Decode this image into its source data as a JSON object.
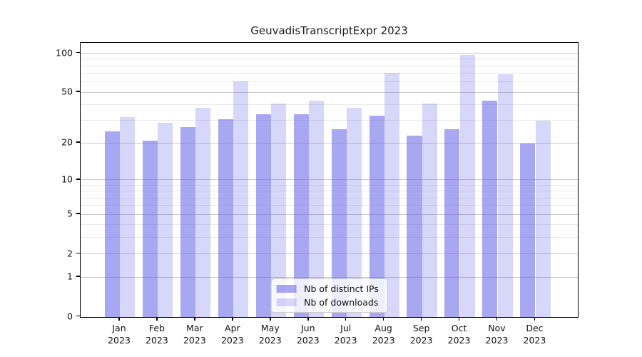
{
  "figure": {
    "background": "#ffffff",
    "border_color": "#000000"
  },
  "chart_data": {
    "type": "bar",
    "title": "GeuvadisTranscriptExpr 2023",
    "categories": [
      "Jan 2023",
      "Feb 2023",
      "Mar 2023",
      "Apr 2023",
      "May 2023",
      "Jun 2023",
      "Jul 2023",
      "Aug 2023",
      "Sep 2023",
      "Oct 2023",
      "Nov 2023",
      "Dec 2023"
    ],
    "series": [
      {
        "name": "Nb of distinct IPs",
        "color": "rgba(96,96,232,0.55)",
        "color_hex_on_white": "#a6a6f2",
        "values": [
          25,
          21,
          27,
          31,
          34,
          34,
          26,
          33,
          23,
          26,
          43,
          20
        ]
      },
      {
        "name": "Nb of downloads",
        "color": "rgba(96,96,232,0.25)",
        "color_hex_on_white": "#d7d7f9",
        "values": [
          32,
          29,
          38,
          61,
          41,
          43,
          38,
          71,
          41,
          97,
          69,
          30
        ]
      }
    ],
    "xlabel": "",
    "ylabel": "",
    "yscale": "log1p",
    "ylim": [
      0,
      121
    ],
    "y_ticks": [
      0,
      1,
      2,
      5,
      10,
      20,
      50,
      100
    ],
    "y_minor_gridlines": [
      3,
      4,
      6,
      7,
      8,
      9,
      30,
      40,
      60,
      70,
      80,
      90
    ],
    "grid": true,
    "legend_position": "lower center",
    "legend_entries": [
      "Nb of distinct IPs",
      "Nb of downloads"
    ],
    "gridline_major_color": "#c9c9c9",
    "gridline_minor_color": "#e9e9e9"
  }
}
